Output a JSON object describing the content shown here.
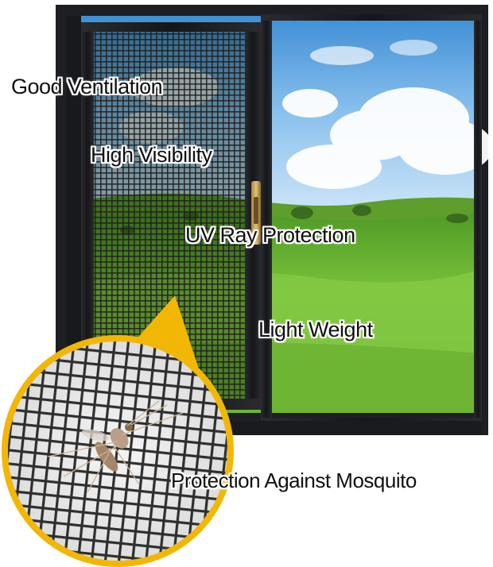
{
  "labels": {
    "ventilation": "Good Ventilation",
    "visibility": "High Visibility",
    "uv": "UV Ray Protection",
    "weight": "Light Weight",
    "mosquito": "Protection Against Mosquito"
  },
  "colors": {
    "frame": "#1e1f22",
    "accent": "#f2b705",
    "sky": "#5aa0dd",
    "grass": "#6dbb2c",
    "mesh": "#2b2b2b"
  }
}
